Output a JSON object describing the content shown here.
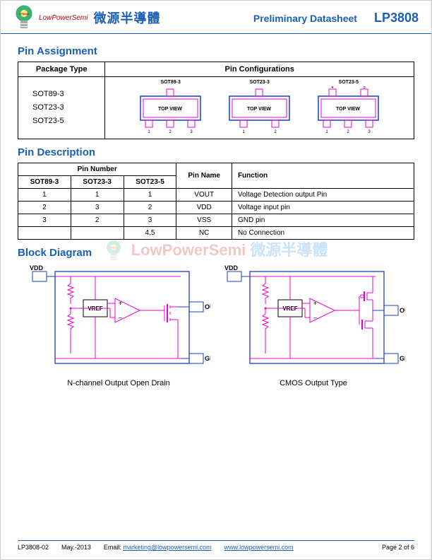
{
  "header": {
    "brand": "LowPowerSemi",
    "cjk": "微源半導體",
    "preliminary": "Preliminary Datasheet",
    "part": "LP3808"
  },
  "sections": {
    "pin_assignment": "Pin Assignment",
    "pin_description": "Pin Description",
    "block_diagram": "Block Diagram"
  },
  "pin_assignment": {
    "col_package": "Package Type",
    "col_config": "Pin Configurations",
    "packages": [
      "SOT89-3",
      "SOT23-3",
      "SOT23-5"
    ],
    "drawings": {
      "sot89_3": {
        "label": "SOT89-3",
        "top_pins": 1,
        "bot_pins": 3,
        "topview": "TOP VIEW"
      },
      "sot23_3": {
        "label": "SOT23-3",
        "top_pins": 1,
        "bot_pins": 2,
        "topview": "TOP VIEW"
      },
      "sot23_5": {
        "label": "SOT23-5",
        "top_pins": 2,
        "bot_pins": 3,
        "topview": "TOP VIEW"
      }
    },
    "colors": {
      "body_stroke": "#1a3dcc",
      "body_fill": "#fff",
      "pins": "#e800d0"
    }
  },
  "pin_description": {
    "head": {
      "pin_number": "Pin Number",
      "pin_name": "Pin Name",
      "function": "Function",
      "sot89_3": "SOT89-3",
      "sot23_3": "SOT23-3",
      "sot23_5": "SOT23-5"
    },
    "rows": [
      {
        "a": "1",
        "b": "1",
        "c": "1",
        "name": "VOUT",
        "fn": "Voltage Detection output Pin"
      },
      {
        "a": "2",
        "b": "3",
        "c": "2",
        "name": "VDD",
        "fn": "Voltage input pin"
      },
      {
        "a": "3",
        "b": "2",
        "c": "3",
        "name": "VSS",
        "fn": "GND pin"
      },
      {
        "a": "",
        "b": "",
        "c": "4,5",
        "name": "NC",
        "fn": "No Connection"
      }
    ]
  },
  "watermark": {
    "brand": "LowPowerSemi",
    "cjk": "微源半導體"
  },
  "block": {
    "vdd": "VDD",
    "out": "OUT",
    "gnd": "GND",
    "vref": "VREF",
    "colors": {
      "outer": "#1a3dcc",
      "inner": "#e800d0",
      "text": "#000"
    },
    "caption_left": "N-channel Output Open Drain",
    "caption_right": "CMOS Output Type"
  },
  "footer": {
    "doc": "LP3808-02",
    "date": "May.-2013",
    "email_label": "Email:",
    "email": "marketing@lowpowersemi.com",
    "url": "www.lowpowersemi.com",
    "page": "Page 2 of 6"
  }
}
